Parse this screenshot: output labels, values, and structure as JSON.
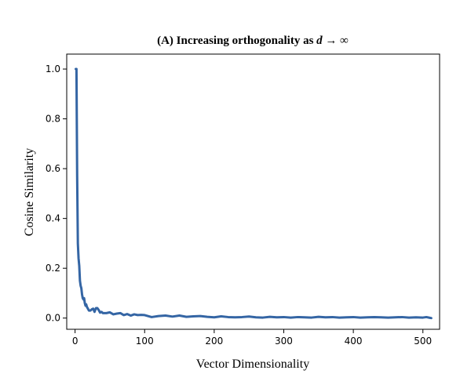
{
  "chart_data": {
    "type": "line",
    "title_prefix": "(A) Increasing orthogonality as",
    "title_var": "d",
    "title_suffix": "→ ∞",
    "xlabel": "Vector Dimensionality",
    "ylabel": "Cosine Similarity",
    "xlim": [
      -12,
      524
    ],
    "ylim": [
      -0.045,
      1.06
    ],
    "xticks": [
      0,
      100,
      200,
      300,
      400,
      500
    ],
    "yticks": [
      0.0,
      0.2,
      0.4,
      0.6,
      0.8,
      1.0
    ],
    "xtick_labels": [
      "0",
      "100",
      "200",
      "300",
      "400",
      "500"
    ],
    "ytick_labels": [
      "0.0",
      "0.2",
      "0.4",
      "0.6",
      "0.8",
      "1.0"
    ],
    "grid": false,
    "color": "#3465a4",
    "series": [
      {
        "x": [
          1,
          2,
          3,
          4,
          5,
          6,
          7,
          8,
          9,
          10,
          11,
          12,
          13,
          14,
          15,
          16,
          17,
          18,
          19,
          20,
          22,
          24,
          26,
          28,
          30,
          32,
          34,
          36,
          38,
          40,
          45,
          50,
          55,
          60,
          65,
          70,
          75,
          80,
          85,
          90,
          95,
          100,
          110,
          120,
          130,
          140,
          150,
          160,
          170,
          180,
          190,
          200,
          210,
          220,
          230,
          240,
          250,
          260,
          270,
          280,
          290,
          300,
          310,
          320,
          330,
          340,
          350,
          360,
          370,
          380,
          390,
          400,
          410,
          420,
          430,
          440,
          450,
          460,
          470,
          480,
          490,
          500,
          505,
          510,
          512
        ],
        "y": [
          1.0,
          1.0,
          0.57,
          0.3,
          0.24,
          0.21,
          0.15,
          0.13,
          0.12,
          0.095,
          0.08,
          0.075,
          0.08,
          0.06,
          0.05,
          0.055,
          0.045,
          0.04,
          0.035,
          0.03,
          0.03,
          0.035,
          0.038,
          0.025,
          0.04,
          0.04,
          0.032,
          0.022,
          0.025,
          0.02,
          0.02,
          0.023,
          0.015,
          0.018,
          0.02,
          0.012,
          0.016,
          0.01,
          0.015,
          0.012,
          0.013,
          0.012,
          0.004,
          0.008,
          0.01,
          0.006,
          0.01,
          0.005,
          0.007,
          0.008,
          0.005,
          0.003,
          0.007,
          0.004,
          0.003,
          0.004,
          0.006,
          0.003,
          0.002,
          0.005,
          0.003,
          0.004,
          0.002,
          0.004,
          0.003,
          0.002,
          0.005,
          0.003,
          0.004,
          0.002,
          0.003,
          0.004,
          0.002,
          0.003,
          0.004,
          0.003,
          0.002,
          0.003,
          0.004,
          0.002,
          0.003,
          0.002,
          0.004,
          0.001,
          0.0
        ]
      }
    ]
  }
}
